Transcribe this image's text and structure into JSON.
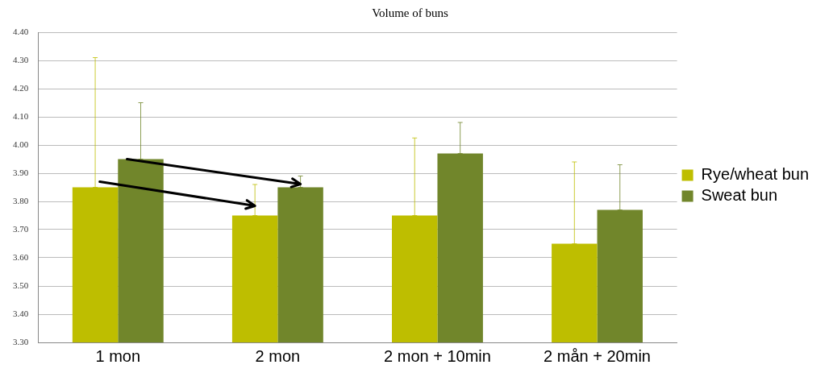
{
  "chart_data": {
    "type": "bar",
    "title": "Volume of buns",
    "categories": [
      "1 mon",
      "2 mon",
      "2 mon + 10min",
      "2 mån + 20min"
    ],
    "series": [
      {
        "name": "Rye/wheat bun",
        "color": "#bebe00",
        "values": [
          3.85,
          3.75,
          3.75,
          3.65
        ],
        "errors": [
          [
            3.85,
            4.31
          ],
          [
            3.75,
            3.86
          ],
          [
            3.75,
            4.025
          ],
          [
            3.65,
            3.94
          ]
        ]
      },
      {
        "name": "Sweat bun",
        "color": "#71862b",
        "values": [
          3.95,
          3.85,
          3.97,
          3.77
        ],
        "errors": [
          [
            3.95,
            4.15
          ],
          [
            3.85,
            3.89
          ],
          [
            3.97,
            4.08
          ],
          [
            3.77,
            3.93
          ]
        ]
      }
    ],
    "ylim": [
      3.3,
      4.4
    ],
    "yticks": [
      {
        "value": 3.3,
        "label": "3.30"
      },
      {
        "value": 3.4,
        "label": "3.40"
      },
      {
        "value": 3.5,
        "label": "3.50"
      },
      {
        "value": 3.6,
        "label": "3.60"
      },
      {
        "value": 3.7,
        "label": "3.70"
      },
      {
        "value": 3.8,
        "label": "3.80"
      },
      {
        "value": 3.9,
        "label": "3.90"
      },
      {
        "value": 4.0,
        "label": "4.00"
      },
      {
        "value": 4.1,
        "label": "4.10"
      },
      {
        "value": 4.2,
        "label": "4.20"
      },
      {
        "value": 4.3,
        "label": "4.30"
      },
      {
        "value": 4.4,
        "label": "4.40"
      }
    ],
    "grid": "y",
    "legend": "right"
  }
}
